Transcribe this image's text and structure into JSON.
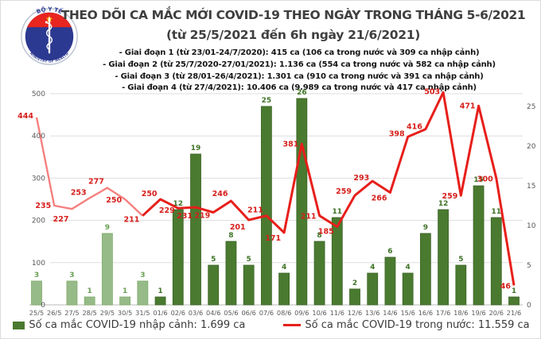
{
  "header": {
    "title_line1": "THEO DÕI CA MẮC MỚI COVID-19 THEO NGÀY TRONG THÁNG 5-6/2021",
    "title_line2": "(từ 25/5/2021 đến 6h ngày 21/6/2021)",
    "bullets": [
      "- Giai đoạn 1 (từ 23/01-24/7/2020): 415 ca (106 ca trong nước và 309 ca nhập cảnh)",
      "- Giai đoạn 2 (từ 25/7/2020-27/01/2021): 1.136 ca (554 ca trong nước và 582 ca nhập cảnh)",
      "- Giai đoạn 3 (từ 28/01-26/4/2021): 1.301 ca (910 ca trong nước và 391 ca nhập cảnh)",
      "- Giai đoạn 4 (từ 27/4/2021): 10.406 ca (9.989 ca trong nước và 417 ca nhập cảnh)"
    ]
  },
  "logo": {
    "arc_top": "BỘ Y TẾ",
    "arc_bottom": "MINISTRY OF HEALTH"
  },
  "chart_data": {
    "type": "bar+line",
    "title": "THEO DÕI CA MẮC MỚI COVID-19 THEO NGÀY TRONG THÁNG 5-6/2021 (từ 25/5/2021 đến 6h ngày 21/6/2021)",
    "categories": [
      "25/5",
      "26/5",
      "27/5",
      "28/5",
      "29/5",
      "30/5",
      "31/5",
      "01/6",
      "02/6",
      "03/6",
      "04/6",
      "05/6",
      "06/6",
      "07/6",
      "08/6",
      "09/6",
      "10/6",
      "11/6",
      "12/6",
      "13/6",
      "14/6",
      "15/6",
      "16/6",
      "17/6",
      "18/6",
      "19/6",
      "20/6",
      "21/6"
    ],
    "series": [
      {
        "name": "Số ca mắc COVID-19 nhập cảnh",
        "type": "bar",
        "axis": "right",
        "values": [
          3,
          0,
          3,
          1,
          9,
          1,
          3,
          1,
          12,
          19,
          5,
          8,
          5,
          25,
          4,
          26,
          8,
          11,
          2,
          4,
          6,
          4,
          9,
          12,
          5,
          15,
          11,
          1
        ]
      },
      {
        "name": "Số ca mắc COVID-19 trong nước",
        "type": "line",
        "axis": "left",
        "values": [
          444,
          235,
          227,
          253,
          277,
          250,
          211,
          250,
          229,
          231,
          219,
          246,
          201,
          211,
          171,
          381,
          211,
          185,
          259,
          293,
          266,
          398,
          416,
          503,
          259,
          471,
          300,
          46
        ]
      }
    ],
    "left_axis": {
      "min": 0,
      "max": 500,
      "ticks": [
        0,
        100,
        200,
        300,
        400,
        500
      ]
    },
    "right_axis": {
      "min": 0,
      "max": 25,
      "ticks": [
        0,
        5,
        10,
        15,
        20,
        25
      ]
    },
    "grid": true,
    "legend_position": "bottom",
    "may_june_split_index": 6,
    "line_label_dy": [
      1,
      3,
      16,
      -4,
      -5,
      4,
      8,
      -4,
      6,
      14,
      7,
      -6,
      12,
      -4,
      10,
      3,
      4,
      9,
      -2,
      -1,
      10,
      -1,
      0,
      2,
      4,
      3,
      4,
      4
    ]
  },
  "legend": {
    "bar": "Số ca mắc COVID-19 nhập cảnh: 1.699 ca",
    "line": "Số ca mắc COVID-19 trong nước: 11.559 ca"
  },
  "colors": {
    "bar_may": "#97bb88",
    "bar_may_border": "#7fac6a",
    "bar_june": "#4a7a30",
    "bar_june_border": "#3c6526",
    "bar_label_may": "#699e54",
    "bar_label_june": "#3e7327",
    "line_may": "#f5807f",
    "line_june": "#e71f1b",
    "line_label": "#d61f1b",
    "axis_text": "#595959",
    "grid": "#dedede",
    "baseline": "#c8c8c8",
    "title_text": "#3f3f3f",
    "logo_blue": "#2b3990",
    "logo_red": "#e8251f",
    "logo_star": "#ffcb05"
  }
}
